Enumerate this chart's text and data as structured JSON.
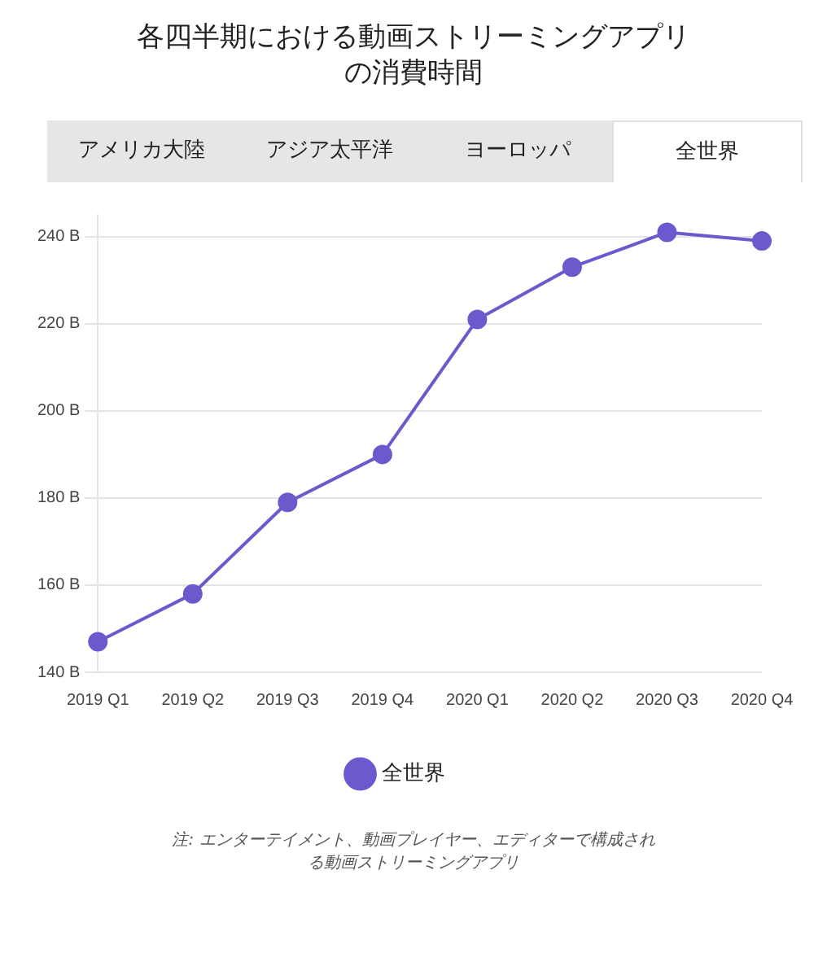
{
  "chart_data": {
    "type": "line",
    "title": "各四半期における動画ストリーミングアプリの消費時間",
    "categories": [
      "2019 Q1",
      "2019 Q2",
      "2019 Q3",
      "2019 Q4",
      "2020 Q1",
      "2020 Q2",
      "2020 Q3",
      "2020 Q4"
    ],
    "series": [
      {
        "name": "全世界",
        "color": "#6a5acd",
        "values": [
          147,
          158,
          179,
          190,
          221,
          233,
          241,
          239
        ]
      }
    ],
    "ylim": [
      140,
      245
    ],
    "yticks": [
      {
        "value": 140,
        "label": "140 B"
      },
      {
        "value": 160,
        "label": "160 B"
      },
      {
        "value": 180,
        "label": "180 B"
      },
      {
        "value": 200,
        "label": "200 B"
      },
      {
        "value": 220,
        "label": "220 B"
      },
      {
        "value": 240,
        "label": "240 B"
      }
    ],
    "grid": "y",
    "legend": "bottom",
    "marker": "circle",
    "line_style": "solid",
    "annotations": [
      "アメリカ大陸",
      "アジア太平洋",
      "ヨーロッパ",
      "全世界",
      "注: エンターテイメント、動画プレイヤー、エディターで構成される動画ストリーミングアプリ"
    ]
  }
}
